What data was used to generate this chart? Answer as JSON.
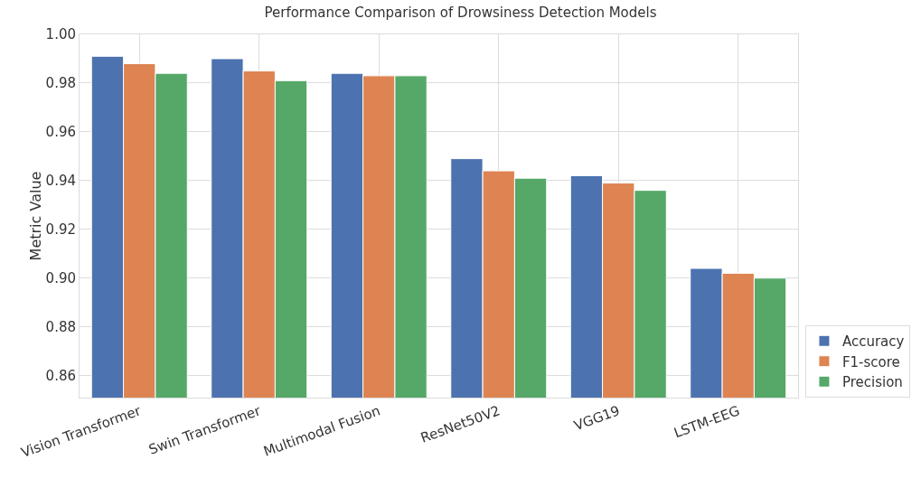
{
  "chart_data": {
    "type": "bar",
    "title": "Performance Comparison of Drowsiness Detection Models",
    "ylabel": "Metric Value",
    "categories": [
      "Vision Transformer",
      "Swin Transformer",
      "Multimodal Fusion",
      "ResNet50V2",
      "VGG19",
      "LSTM-EEG"
    ],
    "series": [
      {
        "name": "Accuracy",
        "color": "#4c72b0",
        "values": [
          0.991,
          0.99,
          0.984,
          0.949,
          0.942,
          0.904
        ]
      },
      {
        "name": "F1-score",
        "color": "#dd8452",
        "values": [
          0.988,
          0.985,
          0.983,
          0.944,
          0.939,
          0.902
        ]
      },
      {
        "name": "Precision",
        "color": "#55a868",
        "values": [
          0.984,
          0.981,
          0.983,
          0.941,
          0.936,
          0.9
        ]
      }
    ],
    "ylim": [
      0.851,
      1.0
    ],
    "yticks": [
      {
        "value": 0.86,
        "label": "0.86"
      },
      {
        "value": 0.88,
        "label": "0.88"
      },
      {
        "value": 0.9,
        "label": "0.90"
      },
      {
        "value": 0.92,
        "label": "0.92"
      },
      {
        "value": 0.94,
        "label": "0.94"
      },
      {
        "value": 0.96,
        "label": "0.96"
      },
      {
        "value": 0.98,
        "label": "0.98"
      },
      {
        "value": 1.0,
        "label": "1.00"
      }
    ],
    "grid": true,
    "legend": "bottom right"
  }
}
